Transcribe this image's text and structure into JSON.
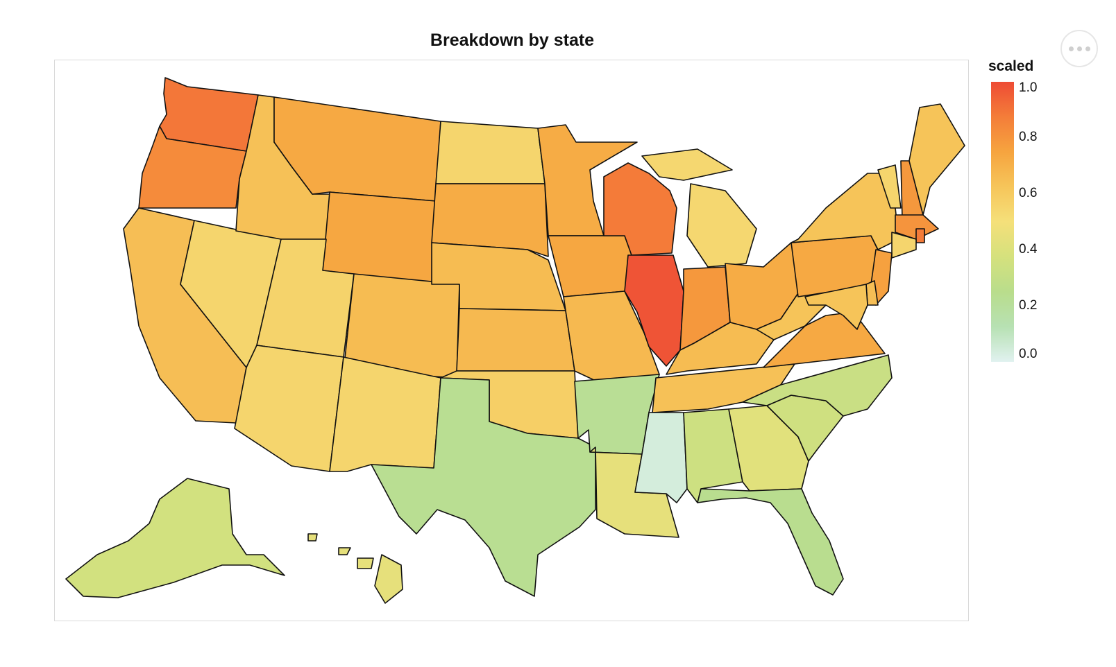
{
  "title": "Breakdown by state",
  "legend": {
    "title": "scaled",
    "ticks": [
      "1.0",
      "0.8",
      "0.6",
      "0.4",
      "0.2",
      "0.0"
    ],
    "scheme": [
      "#e1f2f0",
      "#b7e1b3",
      "#b9dd8c",
      "#d5e17d",
      "#f5e07a",
      "#f6c55a",
      "#f6a43f",
      "#f47d39",
      "#ee4c35"
    ]
  },
  "menu": {
    "icon": "more-horizontal-icon"
  },
  "chart_data": {
    "type": "choropleth",
    "field": "scaled",
    "domain": [
      0,
      1
    ],
    "values": {
      "WA": 0.89,
      "OR": 0.83,
      "CA": 0.65,
      "NV": 0.55,
      "ID": 0.64,
      "MT": 0.73,
      "WY": 0.74,
      "UT": 0.56,
      "AZ": 0.55,
      "CO": 0.66,
      "NM": 0.55,
      "ND": 0.55,
      "SD": 0.72,
      "NE": 0.66,
      "KS": 0.67,
      "OK": 0.58,
      "TX": 0.23,
      "MN": 0.72,
      "IA": 0.74,
      "MO": 0.67,
      "AR": 0.22,
      "LA": 0.44,
      "WI": 0.88,
      "IL": 0.98,
      "MI": 0.54,
      "IN": 0.79,
      "OH": 0.72,
      "KY": 0.66,
      "TN": 0.64,
      "MS": 0.04,
      "AL": 0.34,
      "GA": 0.42,
      "FL": 0.24,
      "SC": 0.35,
      "NC": 0.32,
      "VA": 0.73,
      "WV": 0.63,
      "PA": 0.73,
      "NY": 0.63,
      "VT": 0.55,
      "NH": 0.79,
      "ME": 0.63,
      "MA": 0.8,
      "RI": 0.88,
      "CT": 0.55,
      "NJ": 0.76,
      "DE": 0.65,
      "MD": 0.63,
      "AK": 0.36,
      "HI": 0.44
    }
  }
}
